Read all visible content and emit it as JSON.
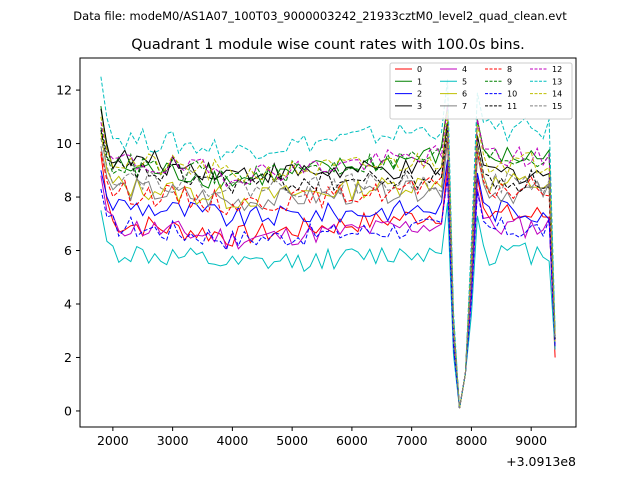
{
  "suptitle": "Data file: modeM0/AS1A07_100T03_9000003242_21933cztM0_level2_quad_clean.evt",
  "chart_data": {
    "type": "line",
    "title": "Quadrant 1 module wise count rates with 100.0s bins.",
    "xlabel": "",
    "ylabel": "",
    "x_offset_label": "+3.0913e8",
    "xlim": [
      1450,
      9750
    ],
    "ylim": [
      -0.6,
      13.2
    ],
    "xticks": [
      2000,
      3000,
      4000,
      5000,
      6000,
      7000,
      8000,
      9000
    ],
    "xtick_labels": [
      "2000",
      "3000",
      "4000",
      "5000",
      "6000",
      "7000",
      "8000",
      "9000"
    ],
    "yticks": [
      0,
      2,
      4,
      6,
      8,
      10,
      12
    ],
    "ytick_labels": [
      "0",
      "2",
      "4",
      "6",
      "8",
      "10",
      "12"
    ],
    "legend_position": "top-right",
    "x_range_data": [
      1800,
      9400
    ],
    "bin_width": 100,
    "approximate_shape_note": "Each module rate is approximately a base level with two deep drops near 7750-7900 and a spike near 8100-8200",
    "dip_x": [
      7650,
      7750,
      7850,
      7950,
      8050,
      8150,
      8250,
      8350
    ],
    "series": [
      {
        "name": "0",
        "color": "#ff0000",
        "style": "solid",
        "start": 9.6,
        "base": 6.5,
        "end": 7.4,
        "final": 2.0
      },
      {
        "name": "1",
        "color": "#008000",
        "style": "solid",
        "start": 11.4,
        "base": 8.6,
        "end": 9.6,
        "final": 2.8
      },
      {
        "name": "2",
        "color": "#0000ff",
        "style": "solid",
        "start": 9.0,
        "base": 7.2,
        "end": 7.6,
        "final": 2.4
      },
      {
        "name": "3",
        "color": "#000000",
        "style": "solid",
        "start": 11.3,
        "base": 8.9,
        "end": 9.0,
        "final": 2.7
      },
      {
        "name": "4",
        "color": "#bf00bf",
        "style": "solid",
        "start": 8.8,
        "base": 6.4,
        "end": 7.0,
        "final": 2.3
      },
      {
        "name": "5",
        "color": "#00bfbf",
        "style": "solid",
        "start": 7.5,
        "base": 5.4,
        "end": 6.0,
        "final": 2.3
      },
      {
        "name": "6",
        "color": "#bfbf00",
        "style": "solid",
        "start": 10.4,
        "base": 7.9,
        "end": 8.6,
        "final": 2.6
      },
      {
        "name": "7",
        "color": "#808080",
        "style": "solid",
        "start": 9.9,
        "base": 7.8,
        "end": 8.3,
        "final": 2.7
      },
      {
        "name": "8",
        "color": "#ff0000",
        "style": "dashed",
        "start": 9.7,
        "base": 7.7,
        "end": 8.4,
        "final": 2.5
      },
      {
        "name": "9",
        "color": "#008000",
        "style": "dashed",
        "start": 10.6,
        "base": 8.7,
        "end": 9.6,
        "final": 2.8
      },
      {
        "name": "10",
        "color": "#0000ff",
        "style": "dashed",
        "start": 8.3,
        "base": 6.4,
        "end": 6.9,
        "final": 2.4
      },
      {
        "name": "11",
        "color": "#000000",
        "style": "dashed",
        "start": 10.5,
        "base": 8.5,
        "end": 8.7,
        "final": 2.7
      },
      {
        "name": "12",
        "color": "#bf00bf",
        "style": "dashed",
        "start": 10.8,
        "base": 8.8,
        "end": 9.6,
        "final": 2.8
      },
      {
        "name": "13",
        "color": "#00bfbf",
        "style": "dashed",
        "start": 12.5,
        "base": 9.7,
        "end": 10.6,
        "final": 3.0
      },
      {
        "name": "14",
        "color": "#bfbf00",
        "style": "dashed",
        "start": 11.0,
        "base": 8.8,
        "end": 9.4,
        "final": 2.8
      },
      {
        "name": "15",
        "color": "#808080",
        "style": "dashed",
        "start": 10.2,
        "base": 8.3,
        "end": 8.6,
        "final": 2.7
      }
    ]
  }
}
